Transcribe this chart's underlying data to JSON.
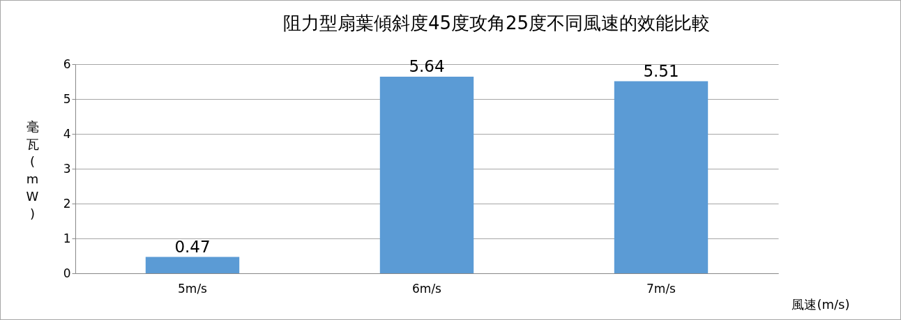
{
  "chart_data": {
    "type": "bar",
    "title": "阻力型扇葉傾斜度45度攻角25度不同風速的效能比較",
    "xlabel": "風速(m/s)",
    "ylabel": "毫瓦(mW)",
    "categories": [
      "5m/s",
      "6m/s",
      "7m/s"
    ],
    "values": [
      0.47,
      5.64,
      5.51
    ],
    "color": "#5b9bd5",
    "ylim": [
      0,
      6
    ],
    "yticks": [
      0,
      1,
      2,
      3,
      4,
      5,
      6
    ],
    "grid": "y",
    "data_labels": true
  }
}
